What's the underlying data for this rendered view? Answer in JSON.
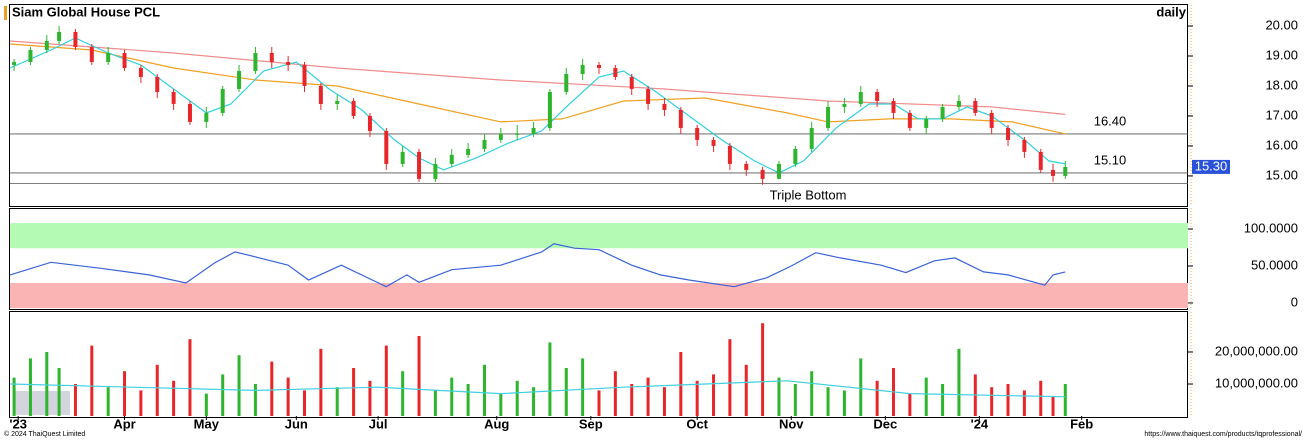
{
  "chart_data": [
    {
      "type": "candlestick",
      "title": "Siam Global House PCL",
      "subtitle": "daily",
      "xlim": [
        0,
        288
      ],
      "ylim": [
        14.03,
        20.7
      ],
      "yticks": [
        {
          "value": 15,
          "label": "15.00"
        },
        {
          "value": 16,
          "label": "16.00"
        },
        {
          "value": 17,
          "label": "17.00"
        },
        {
          "value": 18,
          "label": "18.00"
        },
        {
          "value": 19,
          "label": "19.00"
        },
        {
          "value": 20,
          "label": "20.00"
        }
      ],
      "up_color": "#2db52d",
      "down_color": "#e8262a",
      "x": [
        1,
        5,
        9,
        12,
        16,
        20,
        24,
        28,
        32,
        36,
        40,
        44,
        48,
        52,
        56,
        60,
        64,
        68,
        72,
        76,
        80,
        84,
        88,
        92,
        96,
        100,
        104,
        108,
        112,
        116,
        120,
        124,
        128,
        132,
        136,
        140,
        144,
        148,
        152,
        156,
        160,
        164,
        168,
        172,
        176,
        180,
        184,
        188,
        192,
        196,
        200,
        204,
        208,
        212,
        216,
        220,
        224,
        228,
        232,
        236,
        240,
        244,
        248,
        252,
        255,
        258
      ],
      "open": [
        18.7,
        18.8,
        19.2,
        19.5,
        19.8,
        19.3,
        18.8,
        19.1,
        18.6,
        18.3,
        17.8,
        17.4,
        16.8,
        17.1,
        17.9,
        18.5,
        19.1,
        18.8,
        18.7,
        18.0,
        17.4,
        17.5,
        17.0,
        16.5,
        15.4,
        15.8,
        14.9,
        15.4,
        15.7,
        15.9,
        16.2,
        16.4,
        16.4,
        16.6,
        17.8,
        18.4,
        18.7,
        18.6,
        18.3,
        17.9,
        17.4,
        17.2,
        16.6,
        16.2,
        16.0,
        15.4,
        15.2,
        14.9,
        15.4,
        15.9,
        16.6,
        17.3,
        17.4,
        17.8,
        17.5,
        17.1,
        16.6,
        16.9,
        17.3,
        17.5,
        17.1,
        16.6,
        16.2,
        15.8,
        15.2,
        15.0
      ],
      "high": [
        18.9,
        19.3,
        19.7,
        20.0,
        19.9,
        19.4,
        19.3,
        19.2,
        18.7,
        18.4,
        17.9,
        17.5,
        17.3,
        18.0,
        18.7,
        19.3,
        19.3,
        19.0,
        18.8,
        18.1,
        17.7,
        17.6,
        17.1,
        16.6,
        16.0,
        15.9,
        15.6,
        15.9,
        16.1,
        16.4,
        16.6,
        16.7,
        16.8,
        17.9,
        18.6,
        18.9,
        18.8,
        18.7,
        18.4,
        18.0,
        17.6,
        17.3,
        16.7,
        16.3,
        16.1,
        15.5,
        15.3,
        15.5,
        16.0,
        16.8,
        17.5,
        17.6,
        18.0,
        17.9,
        17.6,
        17.2,
        17.0,
        17.4,
        17.7,
        17.6,
        17.2,
        16.7,
        16.3,
        15.9,
        15.4,
        15.5
      ],
      "low": [
        18.5,
        18.7,
        19.1,
        19.4,
        19.2,
        18.7,
        18.7,
        18.5,
        18.1,
        17.6,
        17.2,
        16.7,
        16.6,
        17.0,
        17.8,
        18.4,
        18.6,
        18.5,
        17.8,
        17.2,
        17.2,
        16.9,
        16.3,
        15.2,
        15.3,
        14.8,
        14.8,
        15.3,
        15.6,
        15.8,
        16.1,
        16.2,
        16.3,
        16.5,
        17.7,
        18.2,
        18.4,
        18.2,
        17.7,
        17.2,
        17.0,
        16.4,
        16.0,
        15.8,
        15.2,
        15.0,
        14.7,
        14.9,
        15.3,
        15.8,
        16.5,
        17.1,
        17.3,
        17.3,
        16.9,
        16.5,
        16.4,
        16.8,
        17.2,
        17.0,
        16.4,
        16.0,
        15.6,
        15.1,
        14.8,
        14.9
      ],
      "close": [
        18.8,
        19.2,
        19.5,
        19.8,
        19.3,
        18.8,
        19.1,
        18.6,
        18.3,
        17.8,
        17.4,
        16.8,
        17.1,
        17.9,
        18.5,
        19.1,
        18.8,
        18.7,
        18.0,
        17.4,
        17.5,
        17.0,
        16.5,
        15.4,
        15.8,
        14.9,
        15.4,
        15.7,
        15.9,
        16.2,
        16.4,
        16.4,
        16.6,
        17.8,
        18.4,
        18.7,
        18.6,
        18.3,
        17.9,
        17.4,
        17.2,
        16.6,
        16.2,
        16.0,
        15.4,
        15.2,
        14.9,
        15.4,
        15.9,
        16.6,
        17.3,
        17.4,
        17.8,
        17.5,
        17.1,
        16.6,
        16.9,
        17.3,
        17.5,
        17.1,
        16.6,
        16.2,
        15.8,
        15.2,
        15.0,
        15.3
      ],
      "series": [
        {
          "color": "#f08c8c",
          "x": [
            0,
            40,
            80,
            120,
            160,
            200,
            240,
            258
          ],
          "values": [
            19.5,
            19.1,
            18.6,
            18.2,
            17.9,
            17.5,
            17.3,
            17.05
          ]
        },
        {
          "color": "#f0a020",
          "x": [
            0,
            20,
            40,
            60,
            80,
            100,
            120,
            135,
            150,
            170,
            190,
            200,
            215,
            230,
            245,
            258
          ],
          "values": [
            19.4,
            19.2,
            18.6,
            18.2,
            18.0,
            17.4,
            16.8,
            16.9,
            17.5,
            17.6,
            17.1,
            16.8,
            16.9,
            16.9,
            16.8,
            16.4
          ]
        },
        {
          "color": "#30d0e0",
          "x": [
            0,
            10,
            16,
            24,
            32,
            40,
            48,
            54,
            62,
            70,
            78,
            86,
            94,
            100,
            106,
            114,
            122,
            130,
            136,
            144,
            150,
            158,
            166,
            174,
            182,
            188,
            194,
            202,
            210,
            216,
            222,
            228,
            234,
            240,
            248,
            254,
            258
          ],
          "values": [
            18.6,
            19.2,
            19.6,
            19.1,
            18.7,
            17.9,
            17.1,
            17.4,
            18.5,
            18.8,
            17.9,
            17.2,
            16.2,
            15.6,
            15.2,
            15.6,
            16.1,
            16.5,
            17.3,
            18.3,
            18.5,
            17.8,
            17.0,
            16.2,
            15.5,
            15.1,
            15.5,
            16.6,
            17.4,
            17.4,
            16.9,
            16.9,
            17.3,
            17.0,
            16.2,
            15.5,
            15.4
          ]
        }
      ],
      "hlines": [
        {
          "value": 16.4,
          "label": "16.40"
        },
        {
          "value": 15.1,
          "label": "15.10"
        },
        {
          "value": 14.75
        }
      ],
      "last_price": {
        "value": 15.3,
        "label": "15.30"
      },
      "annotations": [
        "Triple Bottom"
      ]
    },
    {
      "type": "line",
      "xlim": [
        0,
        288
      ],
      "ylim": [
        -6.8,
        128.4
      ],
      "yticks": [
        0,
        {
          "value": 50,
          "label": "50.0000"
        },
        {
          "value": 100,
          "label": "100.0000"
        }
      ],
      "bands": [
        {
          "range": [
            74,
            108
          ],
          "color": "#b4fab4"
        },
        {
          "range": [
            -6.8,
            27
          ],
          "color": "#fbb4b4"
        }
      ],
      "series": [
        {
          "color": "#3a64d8",
          "x": [
            0,
            10,
            22,
            34,
            43,
            50,
            55,
            61,
            68,
            73,
            81,
            92,
            97,
            100,
            108,
            120,
            130,
            133,
            138,
            144,
            152,
            159,
            166,
            177,
            185,
            191,
            197,
            203,
            213,
            219,
            226,
            231,
            238,
            244,
            253,
            255,
            258
          ],
          "values": [
            38,
            55,
            47,
            38,
            27,
            54,
            69,
            61,
            51,
            31,
            51,
            22,
            38,
            28,
            45,
            51,
            69,
            80,
            74,
            72,
            51,
            38,
            31,
            22,
            34,
            50,
            68,
            61,
            51,
            41,
            57,
            61,
            42,
            38,
            24,
            38,
            42
          ]
        }
      ]
    },
    {
      "type": "bar",
      "xlim": [
        0,
        288
      ],
      "ylim": [
        0,
        32500000
      ],
      "yticks": [
        {
          "value": 10000000,
          "label": "10,000,000.00"
        },
        {
          "value": 20000000,
          "label": "20,000,000.00"
        }
      ],
      "xticks": [
        {
          "value": 2,
          "label": "'23"
        },
        {
          "value": 28,
          "label": "Apr"
        },
        {
          "value": 48,
          "label": "May"
        },
        {
          "value": 70,
          "label": "Jun"
        },
        {
          "value": 90,
          "label": "Jul"
        },
        {
          "value": 119,
          "label": "Aug"
        },
        {
          "value": 142,
          "label": "Sep"
        },
        {
          "value": 168,
          "label": "Oct"
        },
        {
          "value": 191,
          "label": "Nov"
        },
        {
          "value": 214,
          "label": "Dec"
        },
        {
          "value": 237,
          "label": "'24"
        },
        {
          "value": 262,
          "label": "Feb"
        }
      ],
      "values": [
        12000000,
        18000000,
        20000000,
        15000000,
        10000000,
        22000000,
        9000000,
        14000000,
        8000000,
        16000000,
        11000000,
        24000000,
        7000000,
        13000000,
        19000000,
        10000000,
        17000000,
        12000000,
        8000000,
        21000000,
        9000000,
        15000000,
        11000000,
        22000000,
        14000000,
        25000000,
        8000000,
        12000000,
        10000000,
        16000000,
        7000000,
        11000000,
        9000000,
        23000000,
        15000000,
        18000000,
        8000000,
        14000000,
        10000000,
        12000000,
        9000000,
        20000000,
        11000000,
        13000000,
        24000000,
        16000000,
        29000000,
        12000000,
        10000000,
        14000000,
        9000000,
        8000000,
        18000000,
        11000000,
        15000000,
        7000000,
        12000000,
        10000000,
        21000000,
        13000000,
        9000000,
        10000000,
        8000000,
        11000000,
        6000000,
        10000000
      ],
      "series": [
        {
          "color": "#40d0e0",
          "x": [
            0,
            30,
            60,
            90,
            120,
            150,
            190,
            220,
            258
          ],
          "values": [
            10000000,
            9000000,
            8000000,
            9000000,
            7000000,
            9000000,
            11000000,
            7000000,
            6000000
          ]
        }
      ]
    }
  ],
  "footer": {
    "left": "© 2024 ThaiQuest Limited",
    "right": "https://www.thaiquest.com/products/tqprofessional/"
  }
}
